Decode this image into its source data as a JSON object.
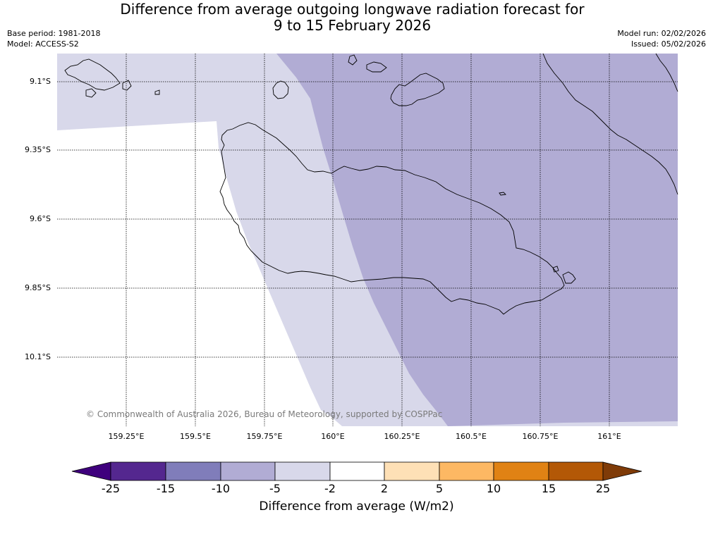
{
  "title_line1": "Difference from average outgoing longwave radiation forecast for",
  "title_line2": "9 to 15 February 2026",
  "base_period": "Base period: 1981-2018",
  "model": "Model: ACCESS-S2",
  "model_run": "Model run: 02/02/2026",
  "issued": "Issued: 05/02/2026",
  "copyright": "© Commonwealth of Australia 2026, Bureau of Meteorology, supported by COSPPac",
  "lat_labels": [
    "9.1°S",
    "9.35°S",
    "9.6°S",
    "9.85°S",
    "10.1°S"
  ],
  "lon_labels": [
    "159.25°E",
    "159.5°E",
    "159.75°E",
    "160°E",
    "160.25°E",
    "160.5°E",
    "160.75°E",
    "161°E"
  ],
  "colorbar": {
    "ticks": [
      "-25",
      "-15",
      "-10",
      "-5",
      "-2",
      "2",
      "5",
      "10",
      "15",
      "25"
    ],
    "label": "Difference from average (W/m2)",
    "colors": [
      "#3f007d",
      "#54278f",
      "#807dba",
      "#b1acd4",
      "#d8d8ea",
      "#ffffff",
      "#fee0b6",
      "#fdb863",
      "#e08214",
      "#b35806",
      "#7f3b08"
    ]
  },
  "map_colors": {
    "band_-5_-2": "#d8d8ea",
    "band_-10_-5": "#b1acd4",
    "neutral": "#ffffff"
  }
}
